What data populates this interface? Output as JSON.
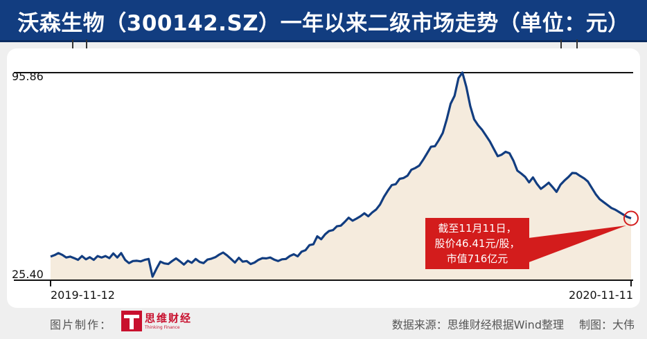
{
  "chart_data": {
    "type": "area",
    "title": "沃森生物（300142.SZ）一年以来二级市场走势（单位：元）",
    "x_start_label": "2019-11-12",
    "x_end_label": "2020-11-11",
    "yticks": [
      "95.86",
      "25.40"
    ],
    "ylim": [
      25.4,
      95.86
    ],
    "series": [
      {
        "color": "#123d80",
        "fill": "#f5ebdd",
        "values": [
          33.4,
          33.9,
          34.6,
          34.0,
          33.1,
          33.4,
          32.9,
          32.3,
          33.6,
          32.5,
          33.2,
          32.3,
          33.6,
          33.1,
          33.6,
          32.9,
          34.5,
          33.1,
          34.6,
          32.3,
          31.2,
          31.9,
          32.0,
          31.8,
          32.3,
          32.6,
          26.6,
          29.3,
          31.7,
          31.1,
          30.9,
          31.9,
          32.8,
          31.8,
          30.7,
          32.0,
          31.3,
          32.6,
          31.6,
          31.2,
          32.4,
          32.7,
          33.2,
          34.1,
          34.8,
          33.8,
          32.6,
          31.4,
          33.0,
          31.7,
          31.9,
          30.9,
          31.4,
          32.3,
          32.9,
          32.8,
          33.1,
          32.4,
          31.9,
          32.5,
          32.6,
          33.6,
          34.2,
          33.5,
          35.1,
          35.6,
          37.3,
          37.6,
          40.3,
          39.3,
          41.0,
          42.1,
          42.4,
          43.7,
          43.9,
          45.2,
          46.6,
          45.6,
          46.3,
          47.1,
          48.1,
          47.1,
          48.4,
          49.4,
          51.1,
          53.7,
          55.8,
          57.7,
          58.0,
          59.8,
          60.1,
          60.9,
          62.9,
          63.5,
          64.3,
          66.3,
          68.5,
          70.7,
          70.9,
          73.0,
          75.4,
          80.0,
          85.3,
          88.0,
          94.0,
          95.9,
          91.0,
          84.5,
          80.0,
          78.0,
          76.5,
          74.5,
          72.5,
          70.0,
          67.5,
          68.0,
          69.0,
          68.5,
          66.0,
          62.6,
          61.6,
          60.5,
          58.6,
          60.3,
          58.1,
          56.4,
          57.4,
          58.5,
          57.0,
          55.4,
          57.8,
          59.2,
          60.4,
          61.8,
          61.7,
          60.8,
          60.0,
          58.9,
          56.7,
          54.6,
          52.9,
          51.9,
          50.9,
          49.9,
          49.3,
          48.5,
          47.7,
          46.9,
          46.41
        ]
      }
    ]
  },
  "annotation": {
    "line1": "截至11月11日，",
    "line2": "股价46.41元/股，",
    "line3": "市值716亿元"
  },
  "footer": {
    "image_credit": "图片制作：",
    "logo_name": "思维财经",
    "logo_sub": "Thinking Finance",
    "source": "数据来源：思维财经根据Wind整理",
    "author": "制图：大伟"
  }
}
